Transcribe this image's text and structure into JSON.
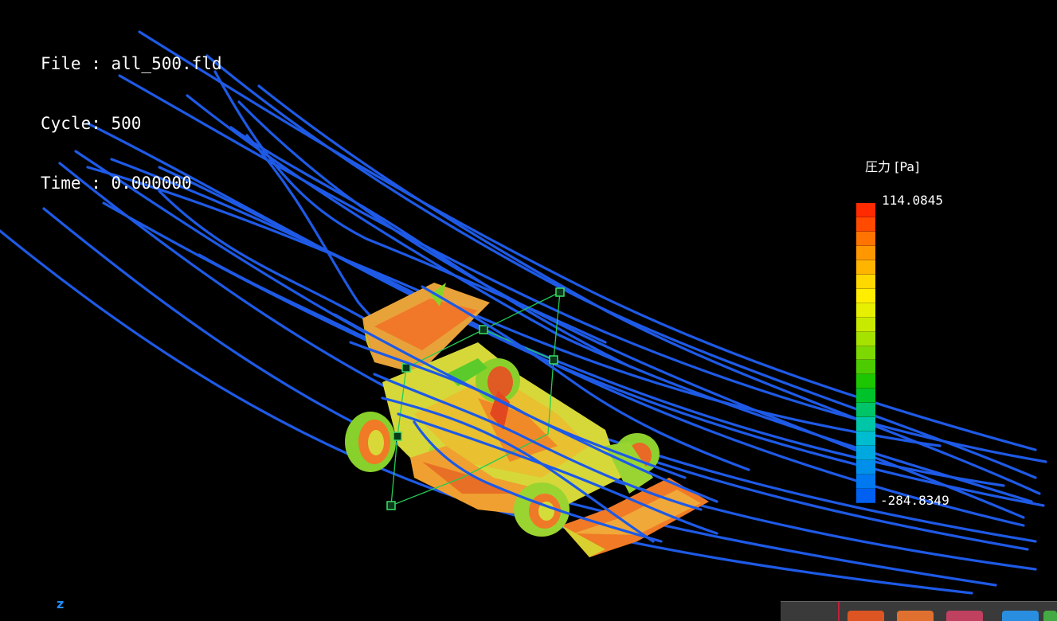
{
  "info": {
    "file": "File : all_500.fld",
    "cycle": "Cycle: 500",
    "time": "Time : 0.000000"
  },
  "legend": {
    "title": "圧力 [Pa]",
    "max": "114.0845",
    "min": "-284.8349",
    "colors": [
      "#ff2a00",
      "#ff4a00",
      "#ff7400",
      "#ff9800",
      "#ffb400",
      "#ffd800",
      "#ffee00",
      "#e6f000",
      "#c8ea00",
      "#a6e200",
      "#7cd800",
      "#4ccc00",
      "#1cc600",
      "#00c22a",
      "#00c468",
      "#00c6a8",
      "#00bcd0",
      "#00a8e0",
      "#0090ea",
      "#0078f0",
      "#0060f2"
    ]
  },
  "axis": {
    "label": "z"
  },
  "taskbar": {
    "icons": [
      "app-icon-1",
      "app-icon-2",
      "app-icon-3",
      "app-icon-4",
      "app-icon-5"
    ],
    "icon_colors": [
      "#dd5522",
      "#e07030",
      "#c04060",
      "#2a8ee0",
      "#44aa44"
    ]
  },
  "colors": {
    "background": "#000000",
    "streamline": "#1e5ae6",
    "handle": "#22cc55"
  }
}
